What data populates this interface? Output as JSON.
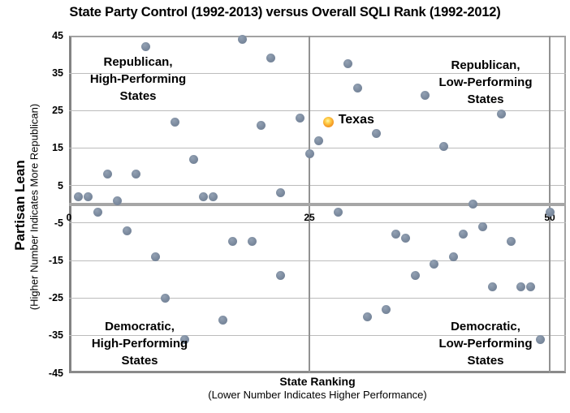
{
  "header": {
    "title": "State Party Control (1992-2013) versus Overall SQLI Rank (1992-2012)"
  },
  "chart_data": {
    "type": "scatter",
    "title": "State Party Control (1992-2013) versus Overall SQLI Rank (1992-2012)",
    "xlabel": "State Ranking",
    "xlabel_note": "(Lower Number Indicates Higher Performance)",
    "ylabel": "Partisan Lean",
    "ylabel_note": "(Higher Number Indicates More Republican)",
    "xlim": [
      0,
      51.7
    ],
    "ylim": [
      -45,
      45
    ],
    "x_ticks": [
      0,
      25,
      50
    ],
    "y_ticks": [
      45,
      35,
      25,
      15,
      5,
      -5,
      -15,
      -25,
      -35,
      -45
    ],
    "grid": true,
    "legend_position": "none",
    "quadrants": [
      {
        "id": "top-left",
        "lines": [
          "Republican,",
          "High-Performing",
          "States"
        ]
      },
      {
        "id": "top-right",
        "lines": [
          "Republican,",
          "Low-Performing",
          "States"
        ]
      },
      {
        "id": "bottom-left",
        "lines": [
          "Democratic,",
          "High-Performing",
          "States"
        ]
      },
      {
        "id": "bottom-right",
        "lines": [
          "Democratic,",
          "Low-Performing",
          "States"
        ]
      }
    ],
    "annotation": {
      "label": "Texas",
      "x": 27,
      "y": 22
    },
    "series": [
      {
        "name": "States",
        "color": "#7b8a9e",
        "points": [
          [
            1,
            2
          ],
          [
            2,
            2
          ],
          [
            3,
            -2
          ],
          [
            4,
            8
          ],
          [
            5,
            1
          ],
          [
            6,
            -7
          ],
          [
            7,
            8
          ],
          [
            8,
            42
          ],
          [
            9,
            -14
          ],
          [
            10,
            -25
          ],
          [
            11,
            22
          ],
          [
            12,
            -36
          ],
          [
            13,
            12
          ],
          [
            14,
            2
          ],
          [
            15,
            2
          ],
          [
            16,
            -31
          ],
          [
            17,
            -10
          ],
          [
            18,
            44
          ],
          [
            19,
            -10
          ],
          [
            20,
            21
          ],
          [
            21,
            39
          ],
          [
            22,
            3
          ],
          [
            22,
            -19
          ],
          [
            24,
            23
          ],
          [
            25,
            13.5
          ],
          [
            26,
            17
          ],
          [
            28,
            -2
          ],
          [
            29,
            37.5
          ],
          [
            30,
            31
          ],
          [
            31,
            -30
          ],
          [
            32,
            19
          ],
          [
            33,
            -28
          ],
          [
            34,
            -8
          ],
          [
            35,
            -9
          ],
          [
            36,
            -19
          ],
          [
            37,
            29
          ],
          [
            38,
            -16
          ],
          [
            39,
            15.5
          ],
          [
            40,
            -14
          ],
          [
            41,
            -8
          ],
          [
            42,
            0
          ],
          [
            43,
            -6
          ],
          [
            44,
            -22
          ],
          [
            45,
            24
          ],
          [
            46,
            -10
          ],
          [
            47,
            -22
          ],
          [
            48,
            -22
          ],
          [
            49,
            -36
          ],
          [
            50,
            -2
          ]
        ]
      },
      {
        "name": "Texas",
        "color": "#f09c2d",
        "points": [
          [
            27,
            22
          ]
        ]
      }
    ]
  },
  "colors": {
    "background": "#ffffff",
    "gridline": "#bcbcbc",
    "zero_line": "#a6a6a6",
    "axis_line": "#8a8a8a",
    "dot": "#7b8a9e",
    "texas_dot": "#f09c2d",
    "text": "#000000"
  }
}
